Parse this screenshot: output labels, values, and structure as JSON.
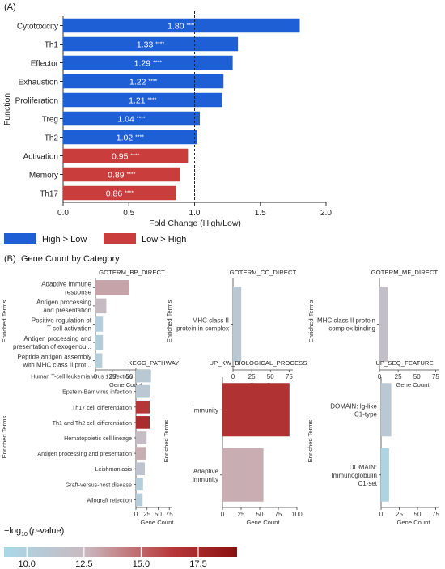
{
  "panelA": {
    "label": "(A)",
    "ylabel": "Function",
    "xlabel": "Fold Change (High/Low)",
    "chart_data": {
      "type": "bar",
      "orientation": "horizontal",
      "categories": [
        "Cytotoxicity",
        "Th1",
        "Effector",
        "Exhaustion",
        "Proliferation",
        "Treg",
        "Th2",
        "Activation",
        "Memory",
        "Th17"
      ],
      "values": [
        1.8,
        1.33,
        1.29,
        1.22,
        1.21,
        1.04,
        1.02,
        0.95,
        0.89,
        0.86
      ],
      "value_labels": [
        "1.80",
        "1.33",
        "1.29",
        "1.22",
        "1.21",
        "1.04",
        "1.02",
        "0.95",
        "0.89",
        "0.86"
      ],
      "significance": [
        "****",
        "****",
        "****",
        "****",
        "****",
        "****",
        "****",
        "****",
        "****",
        "****"
      ],
      "groups": [
        "High > Low",
        "High > Low",
        "High > Low",
        "High > Low",
        "High > Low",
        "High > Low",
        "High > Low",
        "Low > High",
        "Low > High",
        "Low > High"
      ],
      "xlim": [
        0,
        2.0
      ],
      "xticks": [
        "0.0",
        "0.5",
        "1.0",
        "1.5",
        "2.0"
      ],
      "reference_line": 1.0,
      "colors": {
        "High > Low": "#1f5fd6",
        "Low > High": "#c93d3d"
      }
    },
    "legend": [
      {
        "label": "High > Low",
        "color": "#1f5fd6"
      },
      {
        "label": "Low > High",
        "color": "#c93d3d"
      }
    ]
  },
  "panelB": {
    "label": "(B)",
    "title": "Gene Count by Category",
    "colorbar": {
      "label_main": "−log",
      "label_sub": "10",
      "label_italic": "p",
      "label_rest": "-value)",
      "label_open": "(",
      "min": 9.0,
      "max": 19.2,
      "ticks": [
        "10.0",
        "12.5",
        "15.0",
        "17.5"
      ],
      "colors": [
        "#a9d8e8",
        "#c9b9bf",
        "#b8383a",
        "#8b1010"
      ]
    },
    "chart_data": [
      {
        "type": "bar",
        "orientation": "horizontal",
        "title": "GOTERM_BP_DIRECT",
        "ylabel": "Enriched Terms",
        "xlabel": "Gene Count",
        "categories": [
          [
            "Adaptive immune",
            "response"
          ],
          [
            "Antigen processing",
            "and presentation"
          ],
          [
            "Positive regulation of",
            "T cell activation"
          ],
          [
            "Antigen processing and",
            "presentation of exogenou..."
          ],
          [
            "Peptide antigen assembly",
            "with MHC class II prot..."
          ]
        ],
        "values": [
          50,
          16,
          11,
          11,
          10
        ],
        "neglog10p": [
          13.2,
          12.3,
          10.0,
          10.1,
          10.2
        ],
        "xlim": [
          0,
          80
        ],
        "xticks": [
          "0",
          "25",
          "50",
          "75"
        ]
      },
      {
        "type": "bar",
        "orientation": "horizontal",
        "title": "GOTERM_CC_DIRECT",
        "ylabel": "Enriched Terms",
        "xlabel": "Gene Count",
        "categories": [
          [
            "MHC class II",
            "protein in complex"
          ]
        ],
        "values": [
          11
        ],
        "neglog10p": [
          10.8
        ],
        "xlim": [
          0,
          80
        ],
        "xticks": [
          "0",
          "25",
          "50",
          "75"
        ]
      },
      {
        "type": "bar",
        "orientation": "horizontal",
        "title": "GOTERM_MF_DIRECT",
        "ylabel": "Enriched Terms",
        "xlabel": "Gene Count",
        "categories": [
          [
            "MHC class II protein",
            "complex binding"
          ]
        ],
        "values": [
          11
        ],
        "neglog10p": [
          11.9
        ],
        "xlim": [
          0,
          80
        ],
        "xticks": [
          "0",
          "25",
          "50",
          "75"
        ]
      },
      {
        "type": "bar",
        "orientation": "horizontal",
        "title": "KEGG_PATHWAY",
        "ylabel": "Enriched Terms",
        "xlabel": "Gene Count",
        "categories": [
          [
            "Human T-cell leukemia virus 1 infection"
          ],
          [
            "Epstein-Barr virus infection"
          ],
          [
            "Th17 cell differentiation"
          ],
          [
            "Th1 and Th2 cell differentiation"
          ],
          [
            "Hematopoietic cell lineage"
          ],
          [
            "Antigen processing and presentation"
          ],
          [
            "Leishmaniasis"
          ],
          [
            "Graft-versus-host disease"
          ],
          [
            "Allograft rejection"
          ]
        ],
        "values": [
          34,
          32,
          31,
          31,
          24,
          23,
          20,
          16,
          15
        ],
        "neglog10p": [
          10.7,
          10.8,
          16.5,
          17.2,
          12.1,
          12.9,
          11.3,
          10.2,
          10.3
        ],
        "xlim": [
          0,
          80
        ],
        "xticks": [
          "0",
          "25",
          "50",
          "75"
        ]
      },
      {
        "type": "bar",
        "orientation": "horizontal",
        "title": "UP_KW_BIOLOGICAL_PROCESS",
        "ylabel": "Enriched Terms",
        "xlabel": "Gene Count",
        "categories": [
          [
            "Immunity"
          ],
          [
            "Adaptive",
            "immunity"
          ]
        ],
        "values": [
          90,
          55
        ],
        "neglog10p": [
          16.8,
          12.9
        ],
        "xlim": [
          0,
          100
        ],
        "xticks": [
          "0",
          "25",
          "50",
          "75",
          "100"
        ]
      },
      {
        "type": "bar",
        "orientation": "horizontal",
        "title": "UP_SEQ_FEATURE",
        "ylabel": "Enriched Terms",
        "xlabel": "Gene Count",
        "categories": [
          [
            "DOMAIN: Ig-like",
            "C1-type"
          ],
          [
            "DOMAIN:",
            "Immunoglobulin",
            "C1-set"
          ]
        ],
        "values": [
          14,
          11
        ],
        "neglog10p": [
          10.8,
          9.6
        ],
        "xlim": [
          0,
          80
        ],
        "xticks": [
          "0",
          "25",
          "50",
          "75"
        ]
      }
    ]
  }
}
